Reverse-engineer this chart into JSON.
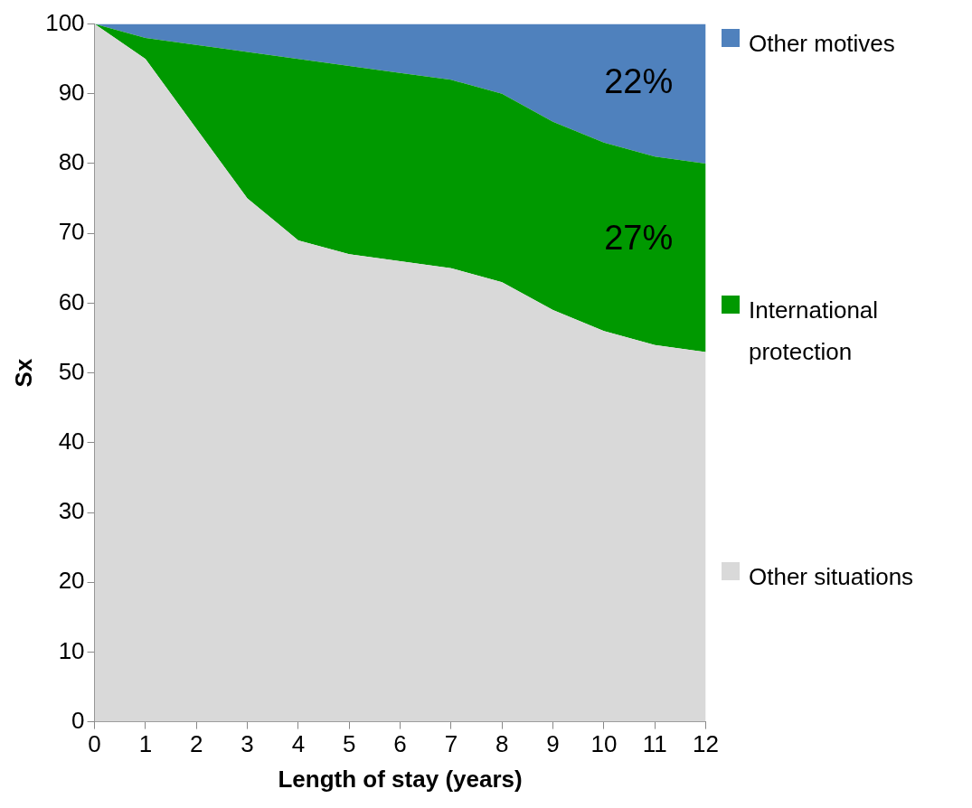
{
  "chart_data": {
    "type": "area",
    "stacked": true,
    "xlabel": "Length of stay (years)",
    "ylabel": "Sx",
    "x": [
      0,
      1,
      2,
      3,
      4,
      5,
      6,
      7,
      8,
      9,
      10,
      11,
      12
    ],
    "series": [
      {
        "name": "Other situations",
        "color": "#d9d9d9",
        "values": [
          100,
          95,
          85,
          75,
          69,
          67,
          66,
          65,
          63,
          59,
          56,
          54,
          53
        ]
      },
      {
        "name": "International protection",
        "color": "#009900",
        "values": [
          0,
          3,
          12,
          21,
          26,
          27,
          27,
          27,
          27,
          27,
          27,
          27,
          27
        ]
      },
      {
        "name": "Other motives",
        "color": "#4f81bd",
        "values": [
          0,
          2,
          3,
          4,
          5,
          6,
          7,
          8,
          10,
          14,
          17,
          19,
          20
        ]
      }
    ],
    "xlim": [
      0,
      12
    ],
    "xticks": [
      0,
      1,
      2,
      3,
      4,
      5,
      6,
      7,
      8,
      9,
      10,
      11,
      12
    ],
    "ylim": [
      0,
      100
    ],
    "yticks": [
      0,
      10,
      20,
      30,
      40,
      50,
      60,
      70,
      80,
      90,
      100
    ],
    "grid": false,
    "legend": "right",
    "marker": "none",
    "annotations": [
      "22%",
      "27%"
    ]
  }
}
